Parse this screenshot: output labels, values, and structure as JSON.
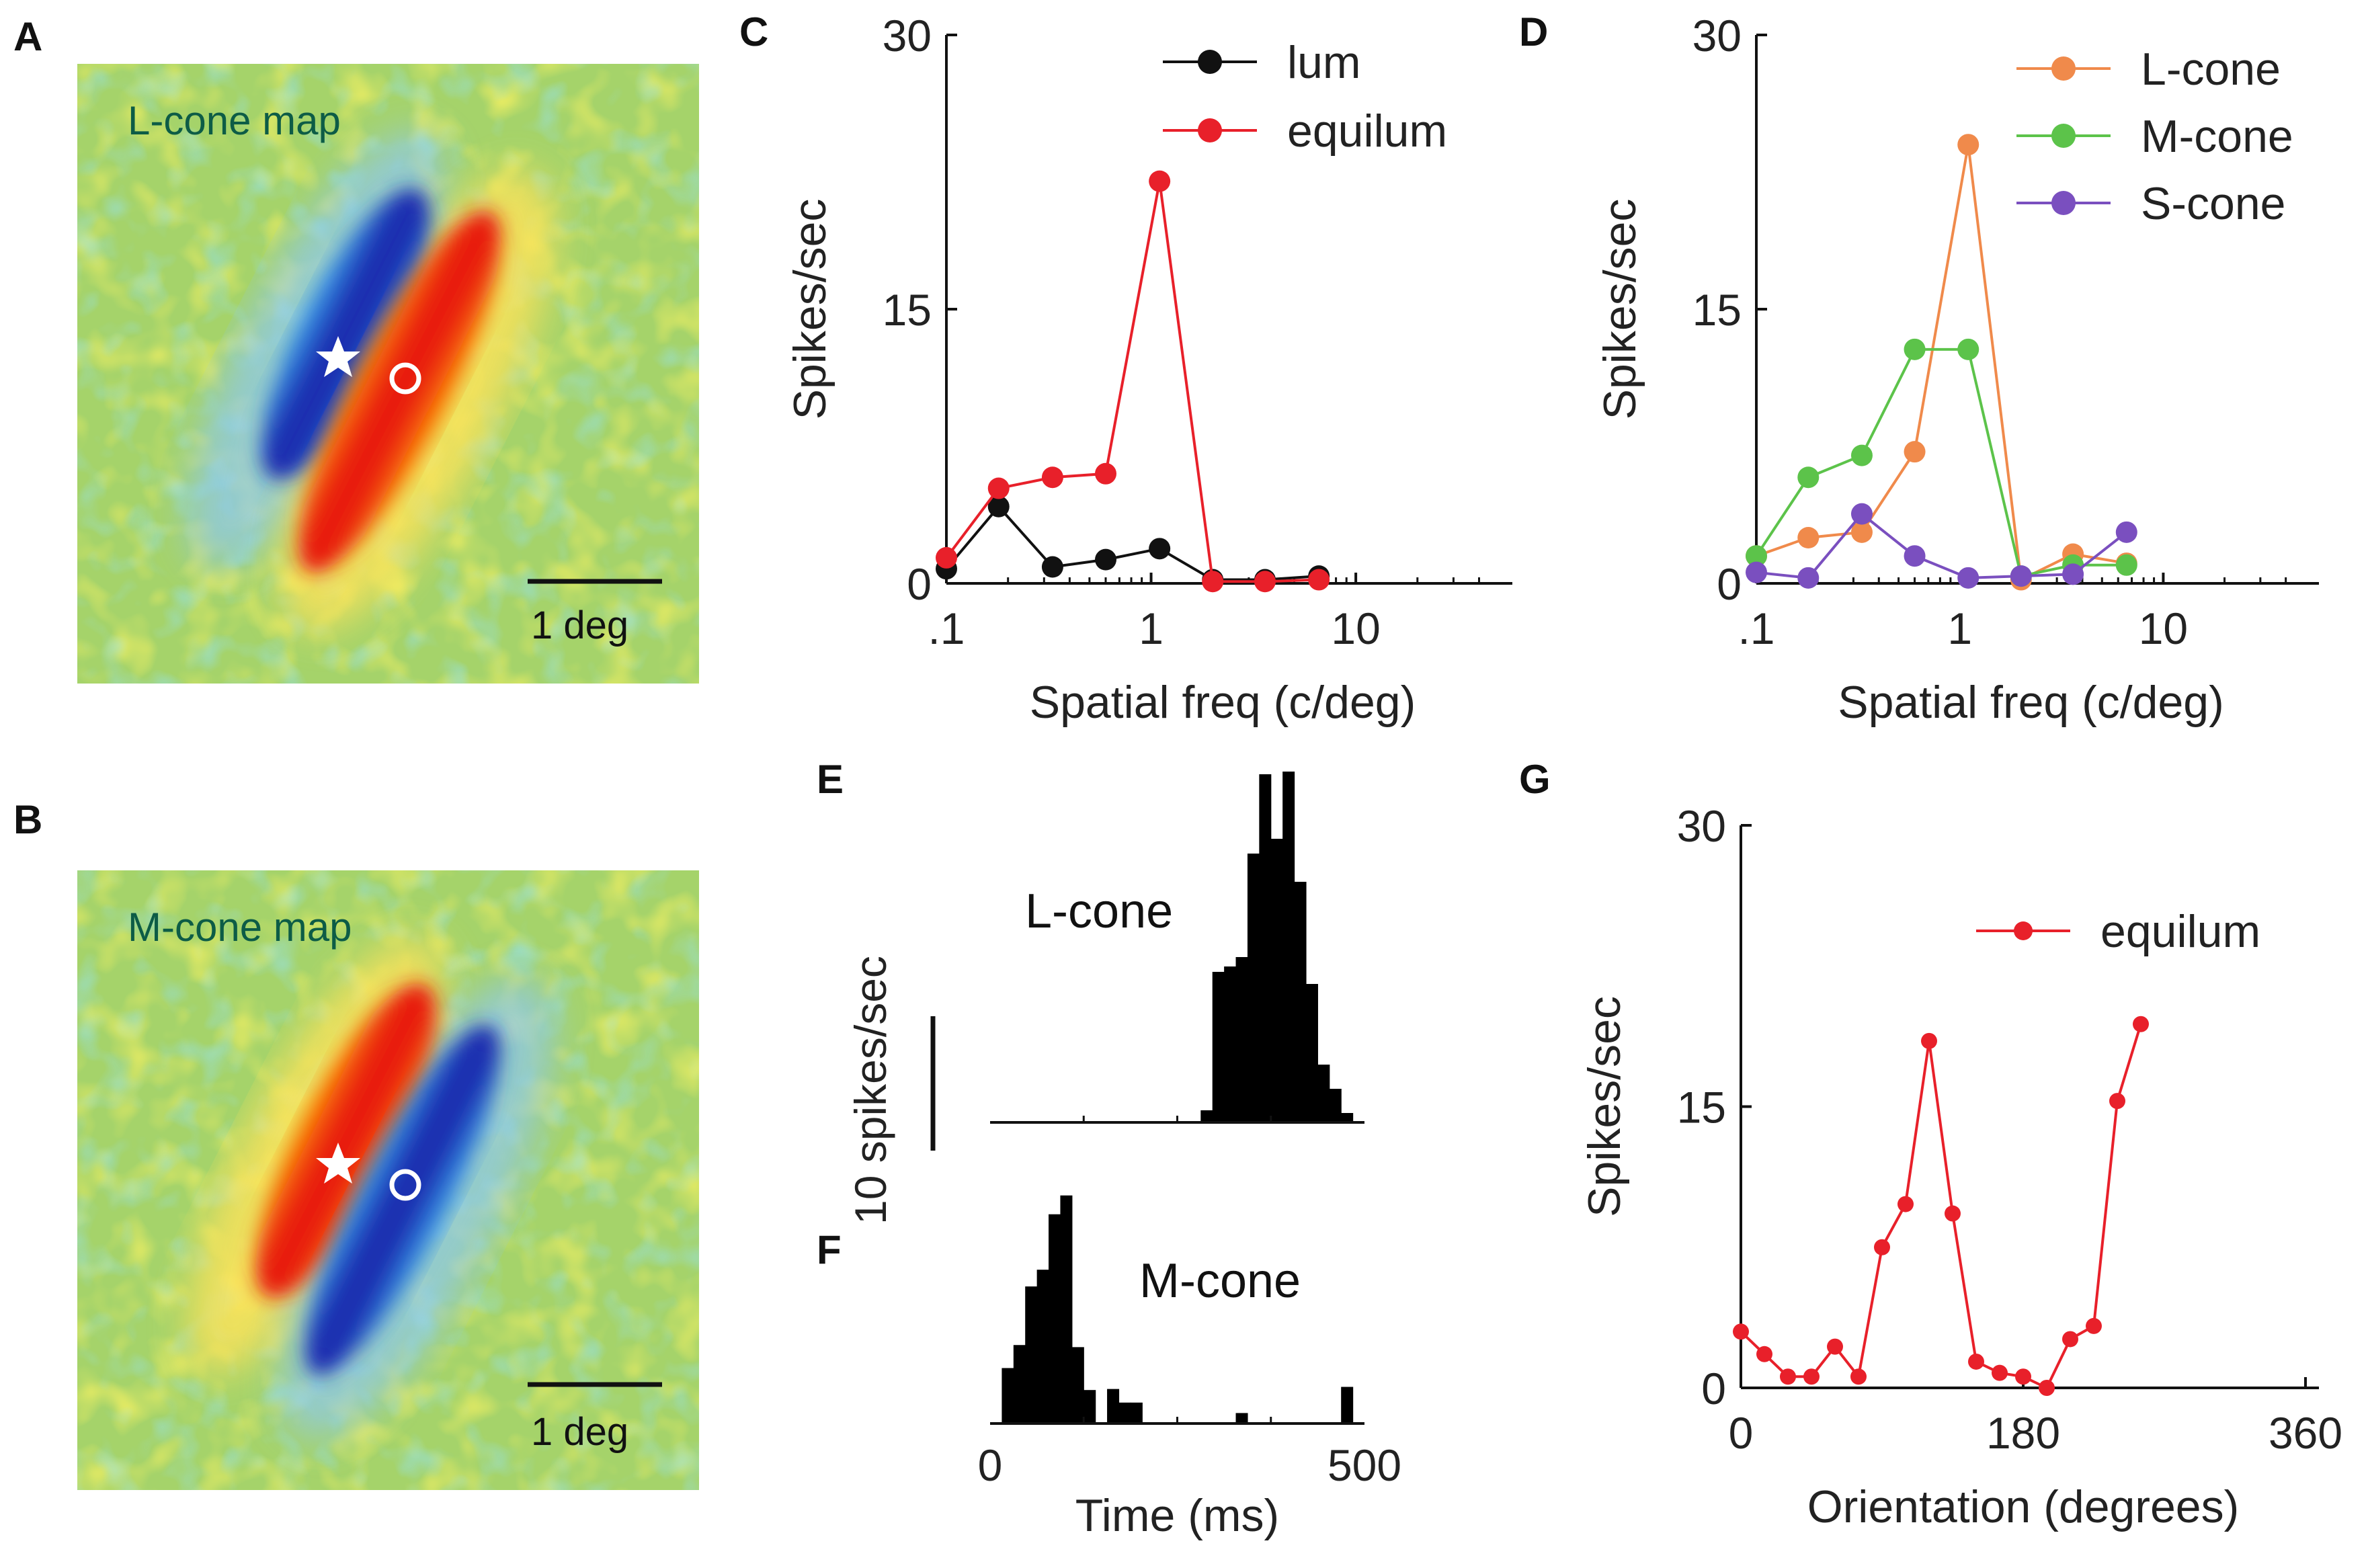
{
  "panel_letters": {
    "A": "A",
    "B": "B",
    "C": "C",
    "D": "D",
    "E": "E",
    "F": "F",
    "G": "G"
  },
  "colors": {
    "lum": "#111111",
    "equilum": "#e8202a",
    "lcone": "#f08a4b",
    "mcone": "#5cc34a",
    "scone": "#7a4fbf"
  },
  "maps": [
    {
      "id": "A",
      "title": "L-cone map",
      "scale_label": "1 deg",
      "star_subfield": "blue (negative)",
      "circle_subfield": "red (positive)"
    },
    {
      "id": "B",
      "title": "M-cone map",
      "scale_label": "1 deg",
      "star_subfield": "red (positive)",
      "circle_subfield": "blue (negative)"
    }
  ],
  "chart_data": [
    {
      "id": "C",
      "type": "line",
      "xscale": "log",
      "xlabel": "Spatial freq (c/deg)",
      "ylabel": "Spikes/sec",
      "xticks": [
        0.1,
        1,
        10
      ],
      "xtick_labels": [
        ".1",
        "1",
        "10"
      ],
      "ylim": [
        0,
        30
      ],
      "yticks": [
        0,
        15,
        30
      ],
      "ytick_labels": [
        "0",
        "15",
        "30"
      ],
      "xlim": [
        0.1,
        50
      ],
      "x": [
        0.1,
        0.18,
        0.33,
        0.6,
        1.1,
        2.0,
        3.6,
        6.6
      ],
      "series": [
        {
          "name": "lum",
          "color_key": "lum",
          "values": [
            0.8,
            4.2,
            0.9,
            1.3,
            1.9,
            0.2,
            0.2,
            0.4
          ]
        },
        {
          "name": "equilum",
          "color_key": "equilum",
          "values": [
            1.4,
            5.2,
            5.8,
            6.0,
            22.0,
            0.1,
            0.1,
            0.2
          ]
        }
      ],
      "legend_position": "top-right"
    },
    {
      "id": "D",
      "type": "line",
      "xscale": "log",
      "xlabel": "Spatial freq (c/deg)",
      "ylabel": "Spikes/sec",
      "xticks": [
        0.1,
        1,
        10
      ],
      "xtick_labels": [
        ".1",
        "1",
        "10"
      ],
      "ylim": [
        0,
        30
      ],
      "yticks": [
        0,
        15,
        30
      ],
      "ytick_labels": [
        "0",
        "15",
        "30"
      ],
      "xlim": [
        0.1,
        50
      ],
      "x": [
        0.1,
        0.18,
        0.33,
        0.6,
        1.1,
        2.0,
        3.6,
        6.6
      ],
      "series": [
        {
          "name": "L-cone",
          "color_key": "lcone",
          "values": [
            1.5,
            2.5,
            2.8,
            7.2,
            24.0,
            0.2,
            1.6,
            1.1
          ]
        },
        {
          "name": "M-cone",
          "color_key": "mcone",
          "values": [
            1.5,
            5.8,
            7.0,
            12.8,
            12.8,
            0.4,
            1.0,
            1.0
          ]
        },
        {
          "name": "S-cone",
          "color_key": "scone",
          "values": [
            0.6,
            0.3,
            3.8,
            1.5,
            0.3,
            0.4,
            0.5,
            2.8
          ]
        }
      ],
      "legend_position": "top-right"
    },
    {
      "id": "E",
      "type": "bar",
      "subtype": "histogram",
      "label": "L-cone",
      "scale_bar_label": "10 spikes/sec",
      "scale_bar_value": 10,
      "bin_width_ms": 16.7,
      "values": [
        0,
        0,
        0,
        0,
        0,
        0,
        0,
        0,
        0,
        0,
        0,
        0,
        0,
        0,
        0,
        0,
        0,
        0,
        0.9,
        11.2,
        11.6,
        12.3,
        20.0,
        25.9,
        21.1,
        26.1,
        17.9,
        10.3,
        4.3,
        2.5,
        0.7,
        0
      ]
    },
    {
      "id": "F",
      "type": "bar",
      "subtype": "histogram",
      "label": "M-cone",
      "xlabel": "Time (ms)",
      "xticks": [
        0,
        500
      ],
      "xtick_labels": [
        "0",
        "500"
      ],
      "bin_width_ms": 16.7,
      "values": [
        0,
        5.3,
        7.5,
        13.1,
        14.7,
        20.0,
        21.8,
        7.3,
        3.2,
        0,
        3.3,
        2.0,
        2.0,
        0,
        0,
        0,
        0,
        0,
        0,
        0,
        0,
        1.0,
        0,
        0,
        0,
        0,
        0,
        0,
        0,
        0,
        3.5,
        0
      ]
    },
    {
      "id": "G",
      "type": "line",
      "xlabel": "Orientation (degrees)",
      "ylabel": "Spikes/sec",
      "xlim": [
        0,
        360
      ],
      "xticks": [
        0,
        180,
        360
      ],
      "xtick_labels": [
        "0",
        "180",
        "360"
      ],
      "ylim": [
        0,
        30
      ],
      "yticks": [
        0,
        15,
        30
      ],
      "ytick_labels": [
        "0",
        "15",
        "30"
      ],
      "x": [
        0,
        15,
        30,
        45,
        60,
        75,
        90,
        105,
        120,
        135,
        150,
        165,
        180,
        195,
        210,
        225,
        240,
        255,
        270,
        285,
        300,
        315
      ],
      "series": [
        {
          "name": "equilum",
          "color_key": "equilum",
          "values": [
            3.0,
            1.8,
            0.6,
            0.6,
            2.2,
            0.6,
            7.5,
            9.8,
            18.5,
            9.3,
            1.4,
            0.8,
            0.6,
            0.0,
            2.6,
            3.3,
            15.3,
            19.4,
            null,
            null,
            null,
            null
          ]
        }
      ],
      "x_override": [
        0,
        15,
        30,
        45,
        60,
        75,
        90,
        105,
        120,
        135,
        150,
        165,
        180,
        195,
        210,
        225,
        240,
        255
      ],
      "legend_position": "top-right"
    }
  ]
}
